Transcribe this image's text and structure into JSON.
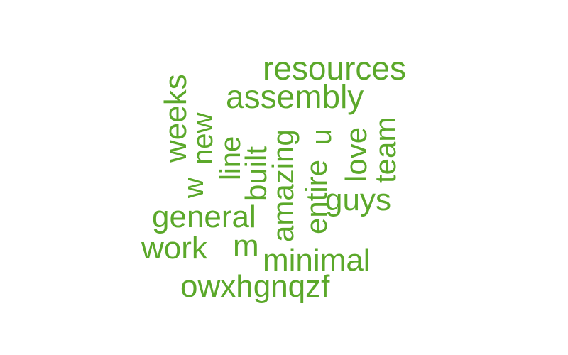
{
  "colors": {
    "background": "#ffffff",
    "word": "#5ba82a"
  },
  "words": [
    {
      "text": "resources",
      "vertical": false
    },
    {
      "text": "assembly",
      "vertical": false
    },
    {
      "text": "weeks",
      "vertical": true
    },
    {
      "text": "new",
      "vertical": true
    },
    {
      "text": "w",
      "vertical": true
    },
    {
      "text": "line",
      "vertical": true
    },
    {
      "text": "built",
      "vertical": true
    },
    {
      "text": "amazing",
      "vertical": true
    },
    {
      "text": "u",
      "vertical": true
    },
    {
      "text": "entire",
      "vertical": true
    },
    {
      "text": "love",
      "vertical": true
    },
    {
      "text": "team",
      "vertical": true
    },
    {
      "text": "guys",
      "vertical": false
    },
    {
      "text": "general",
      "vertical": false
    },
    {
      "text": "work",
      "vertical": false
    },
    {
      "text": "m",
      "vertical": false
    },
    {
      "text": "minimal",
      "vertical": false
    },
    {
      "text": "owxhgnqzf",
      "vertical": false
    }
  ]
}
